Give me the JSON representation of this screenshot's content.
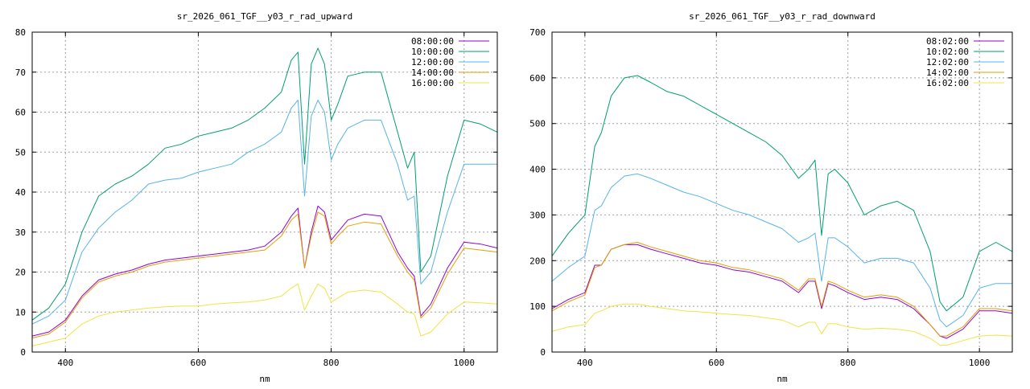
{
  "chart_data": [
    {
      "type": "line",
      "title": "sr_2026_061_TGF__y03_r_rad_upward",
      "xlabel": "nm",
      "ylabel": "",
      "xlim": [
        350,
        1050
      ],
      "ylim": [
        0,
        80
      ],
      "xticks": [
        400,
        600,
        800,
        1000
      ],
      "yticks": [
        0,
        10,
        20,
        30,
        40,
        50,
        60,
        70,
        80
      ],
      "grid": true,
      "legend_position": "top-right",
      "x": [
        350,
        375,
        400,
        425,
        450,
        475,
        500,
        525,
        550,
        575,
        600,
        625,
        650,
        675,
        700,
        725,
        740,
        750,
        760,
        770,
        780,
        790,
        800,
        810,
        825,
        850,
        875,
        900,
        915,
        925,
        935,
        950,
        975,
        1000,
        1025,
        1050
      ],
      "series": [
        {
          "name": "08:00:00",
          "color": "#9400d3",
          "values": [
            4,
            5,
            8,
            14,
            18,
            19.5,
            20.5,
            22,
            23,
            23.5,
            24,
            24.5,
            25,
            25.5,
            26.5,
            30,
            34,
            36,
            21,
            30,
            36.5,
            35,
            28,
            30,
            33,
            34.5,
            34,
            25,
            21,
            19,
            9,
            12,
            21,
            27.5,
            27,
            26
          ]
        },
        {
          "name": "10:00:00",
          "color": "#009e73",
          "values": [
            8,
            11,
            17,
            30,
            39,
            42,
            44,
            47,
            51,
            52,
            54,
            55,
            56,
            58,
            61,
            65,
            73,
            75,
            47,
            72,
            76,
            72,
            58,
            62,
            69,
            70,
            70,
            55,
            46,
            50,
            20,
            24,
            44,
            58,
            57,
            55
          ]
        },
        {
          "name": "12:00:00",
          "color": "#56b4e9",
          "values": [
            7,
            9,
            13,
            25,
            31,
            35,
            38,
            42,
            43,
            43.5,
            45,
            46,
            47,
            50,
            52,
            55,
            61,
            63,
            39,
            59,
            63,
            60,
            48,
            52,
            56,
            58,
            58,
            47,
            38,
            39,
            17,
            20,
            35,
            47,
            47,
            47
          ]
        },
        {
          "name": "14:00:00",
          "color": "#e69f00",
          "values": [
            3.5,
            4.5,
            7.5,
            13.5,
            17.5,
            19,
            20,
            21.5,
            22.5,
            23,
            23.5,
            24,
            24.5,
            25,
            25.5,
            29,
            33,
            34.5,
            21,
            29,
            35,
            34,
            27,
            29,
            31.5,
            32.5,
            32,
            24,
            20,
            18,
            8.5,
            11,
            19.5,
            26,
            25.5,
            25
          ]
        },
        {
          "name": "16:00:00",
          "color": "#f0e442",
          "values": [
            1.5,
            2.5,
            3.5,
            7,
            9,
            10,
            10.5,
            11,
            11.3,
            11.5,
            11.5,
            12,
            12.3,
            12.5,
            13,
            14,
            16,
            17,
            10.5,
            14,
            17,
            16,
            12.5,
            13.5,
            15,
            15.5,
            15,
            12,
            10,
            9.5,
            4,
            5,
            9.5,
            12.5,
            12.3,
            12
          ]
        }
      ]
    },
    {
      "type": "line",
      "title": "sr_2026_061_TGF__y03_r_rad_downward",
      "xlabel": "nm",
      "ylabel": "",
      "xlim": [
        350,
        1050
      ],
      "ylim": [
        0,
        700
      ],
      "xticks": [
        400,
        600,
        800,
        1000
      ],
      "yticks": [
        0,
        100,
        200,
        300,
        400,
        500,
        600,
        700
      ],
      "grid": true,
      "legend_position": "top-right",
      "x": [
        350,
        375,
        400,
        415,
        425,
        440,
        460,
        480,
        500,
        525,
        550,
        575,
        600,
        625,
        650,
        675,
        700,
        725,
        740,
        750,
        760,
        770,
        780,
        800,
        825,
        850,
        875,
        900,
        925,
        940,
        950,
        975,
        1000,
        1025,
        1050
      ],
      "series": [
        {
          "name": "08:02:00",
          "color": "#9400d3",
          "values": [
            95,
            115,
            130,
            190,
            190,
            225,
            235,
            235,
            225,
            215,
            205,
            195,
            190,
            180,
            175,
            165,
            155,
            130,
            155,
            155,
            95,
            150,
            145,
            130,
            115,
            120,
            115,
            95,
            60,
            35,
            30,
            50,
            90,
            90,
            85
          ]
        },
        {
          "name": "10:02:00",
          "color": "#009e73",
          "values": [
            210,
            260,
            300,
            450,
            480,
            560,
            600,
            605,
            590,
            570,
            560,
            540,
            520,
            500,
            480,
            460,
            430,
            380,
            400,
            420,
            255,
            390,
            400,
            370,
            300,
            320,
            330,
            310,
            220,
            110,
            90,
            120,
            220,
            240,
            220
          ]
        },
        {
          "name": "12:02:00",
          "color": "#56b4e9",
          "values": [
            155,
            185,
            210,
            310,
            320,
            360,
            385,
            390,
            380,
            365,
            350,
            340,
            325,
            310,
            300,
            285,
            270,
            240,
            250,
            260,
            155,
            250,
            250,
            230,
            195,
            205,
            205,
            195,
            140,
            70,
            55,
            80,
            140,
            150,
            150
          ]
        },
        {
          "name": "14:02:00",
          "color": "#e69f00",
          "values": [
            90,
            110,
            125,
            185,
            190,
            225,
            235,
            240,
            230,
            220,
            210,
            200,
            195,
            185,
            180,
            170,
            160,
            135,
            160,
            160,
            100,
            155,
            150,
            135,
            120,
            125,
            120,
            100,
            60,
            35,
            35,
            55,
            95,
            95,
            90
          ]
        },
        {
          "name": "16:02:00",
          "color": "#f0e442",
          "values": [
            45,
            55,
            60,
            85,
            90,
            100,
            105,
            105,
            100,
            95,
            90,
            88,
            85,
            82,
            80,
            75,
            70,
            55,
            65,
            65,
            40,
            62,
            62,
            55,
            50,
            52,
            50,
            45,
            30,
            15,
            15,
            25,
            35,
            37,
            35
          ]
        }
      ]
    }
  ]
}
